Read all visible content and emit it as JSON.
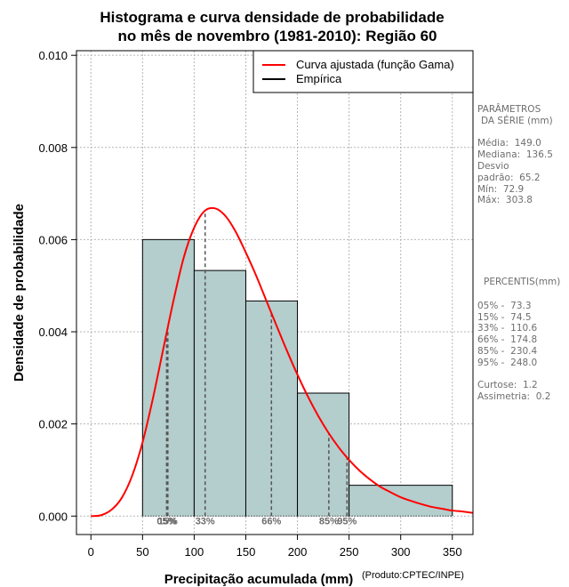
{
  "chart_data": {
    "type": "histogram",
    "title_line1": "Histograma e curva densidade de probabilidade",
    "title_line2": "no mês de novembro (1981-2010): Região 60",
    "xlabel": "Precipitação acumulada (mm)",
    "ylabel": "Densidade de probabilidade",
    "credit": "(Produto:CPTEC/INPE)",
    "xlim": [
      -14,
      370
    ],
    "ylim": [
      -0.0004,
      0.0101
    ],
    "xticks": [
      0,
      50,
      100,
      150,
      200,
      250,
      300,
      350
    ],
    "xtick_labels": [
      "0",
      "50",
      "100",
      "150",
      "200",
      "250",
      "300",
      "350"
    ],
    "yticks": [
      0,
      0.002,
      0.004,
      0.006,
      0.008,
      0.01
    ],
    "ytick_labels": [
      "0.000",
      "0.002",
      "0.004",
      "0.006",
      "0.008",
      "0.010"
    ],
    "grid": true,
    "bars": [
      {
        "x0": 50,
        "x1": 100,
        "value": 0.006
      },
      {
        "x0": 100,
        "x1": 150,
        "value": 0.00533
      },
      {
        "x0": 150,
        "x1": 200,
        "value": 0.00467
      },
      {
        "x0": 200,
        "x1": 250,
        "value": 0.00267
      },
      {
        "x0": 250,
        "x1": 350,
        "value": 0.00067
      }
    ],
    "curve": {
      "name": "Curva ajustada (função Gama)",
      "color": "#ff0000",
      "x": [
        0,
        10,
        20,
        30,
        40,
        50,
        60,
        70,
        80,
        90,
        100,
        110,
        120,
        130,
        140,
        150,
        160,
        170,
        180,
        190,
        200,
        210,
        220,
        230,
        240,
        250,
        260,
        270,
        280,
        290,
        300,
        310,
        320,
        330,
        340,
        350,
        360,
        370
      ],
      "y": [
        0,
        2e-05,
        0.00014,
        0.0004,
        0.00088,
        0.0016,
        0.00255,
        0.00362,
        0.00468,
        0.00562,
        0.00626,
        0.00662,
        0.00668,
        0.00652,
        0.00618,
        0.00572,
        0.00522,
        0.00467,
        0.00412,
        0.00358,
        0.00307,
        0.0026,
        0.00218,
        0.00181,
        0.00149,
        0.00122,
        0.00099,
        0.0008,
        0.00064,
        0.00052,
        0.00041,
        0.00033,
        0.00026,
        0.0002,
        0.00016,
        0.00012,
        0.0001,
        7e-05
      ]
    },
    "legend": [
      {
        "label": "Curva ajustada (função Gama)",
        "color": "#ff0000"
      },
      {
        "label": "Empírica",
        "color": "#000000"
      }
    ],
    "percentile_lines": [
      {
        "label": "05%",
        "x": 73.3
      },
      {
        "label": "15%",
        "x": 74.5
      },
      {
        "label": "33%",
        "x": 110.6
      },
      {
        "label": "66%",
        "x": 174.8
      },
      {
        "label": "85%",
        "x": 230.4
      },
      {
        "label": "95%",
        "x": 248.0
      }
    ],
    "bar_color": "#b4cdcd"
  },
  "side_panel": {
    "parametros_title": "PARÂMETROS",
    "parametros_subtitle": "DA SÉRIE (mm)",
    "media": "Média:  149.0",
    "mediana": "Mediana:  136.5",
    "desvio1": "Desvio",
    "desvio2": "padrão:  65.2",
    "min": "Mín:  72.9",
    "max": "Máx:  303.8",
    "percentis_title": "PERCENTIS(mm)",
    "p05": "05% -  73.3",
    "p15": "15% -  74.5",
    "p33": "33% -  110.6",
    "p66": "66% -  174.8",
    "p85": "85% -  230.4",
    "p95": "95% -  248.0",
    "curtose": "Curtose:  1.2",
    "assimetria": "Assimetria:  0.2"
  }
}
